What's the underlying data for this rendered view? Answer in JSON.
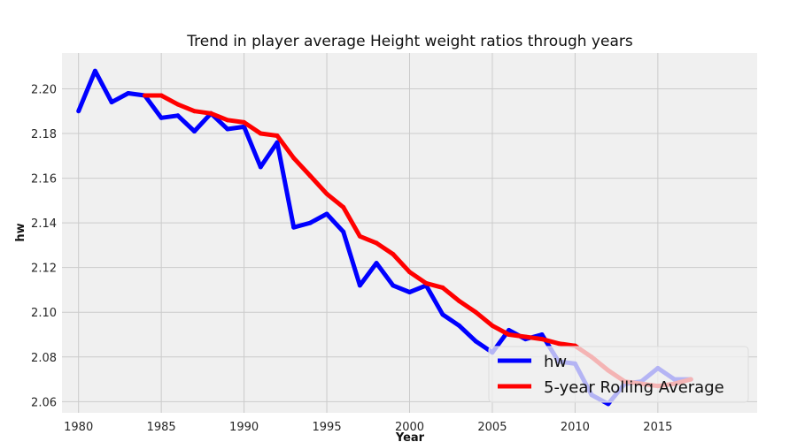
{
  "chart_data": {
    "type": "line",
    "title": "Trend in player average Height weight ratios through years",
    "xlabel": "Year",
    "ylabel": "hw",
    "xlim": [
      1979,
      2021
    ],
    "ylim": [
      2.055,
      2.216
    ],
    "xticks": [
      1980,
      1985,
      1990,
      1995,
      2000,
      2005,
      2010,
      2015
    ],
    "yticks": [
      2.06,
      2.08,
      2.1,
      2.12,
      2.14,
      2.16,
      2.18,
      2.2
    ],
    "ytick_labels": [
      "2.06",
      "2.08",
      "2.10",
      "2.12",
      "2.14",
      "2.16",
      "2.18",
      "2.20"
    ],
    "grid": true,
    "legend_position": "lower-right",
    "background_color": "#f0f0f0",
    "series": [
      {
        "name": "hw",
        "color": "#0000ff",
        "x": [
          1980,
          1981,
          1982,
          1983,
          1984,
          1985,
          1986,
          1987,
          1988,
          1989,
          1990,
          1991,
          1992,
          1993,
          1994,
          1995,
          1996,
          1997,
          1998,
          1999,
          2000,
          2001,
          2002,
          2003,
          2004,
          2005,
          2006,
          2007,
          2008,
          2009,
          2010,
          2011,
          2012,
          2013,
          2014,
          2015,
          2016,
          2017
        ],
        "values": [
          2.19,
          2.208,
          2.194,
          2.198,
          2.197,
          2.187,
          2.188,
          2.181,
          2.189,
          2.182,
          2.183,
          2.165,
          2.176,
          2.138,
          2.14,
          2.144,
          2.136,
          2.112,
          2.122,
          2.112,
          2.109,
          2.112,
          2.099,
          2.094,
          2.087,
          2.082,
          2.092,
          2.088,
          2.09,
          2.078,
          2.077,
          2.063,
          2.059,
          2.068,
          2.069,
          2.075,
          2.07,
          2.07
        ]
      },
      {
        "name": "5-year Rolling Average",
        "color": "#ff0000",
        "x": [
          1984,
          1985,
          1986,
          1987,
          1988,
          1989,
          1990,
          1991,
          1992,
          1993,
          1994,
          1995,
          1996,
          1997,
          1998,
          1999,
          2000,
          2001,
          2002,
          2003,
          2004,
          2005,
          2006,
          2007,
          2008,
          2009,
          2010,
          2011,
          2012,
          2013,
          2014,
          2015,
          2016,
          2017
        ],
        "values": [
          2.197,
          2.197,
          2.193,
          2.19,
          2.189,
          2.186,
          2.185,
          2.18,
          2.179,
          2.169,
          2.161,
          2.153,
          2.147,
          2.134,
          2.131,
          2.126,
          2.118,
          2.113,
          2.111,
          2.105,
          2.1,
          2.094,
          2.09,
          2.089,
          2.088,
          2.086,
          2.085,
          2.08,
          2.074,
          2.069,
          2.068,
          2.067,
          2.068,
          2.07
        ]
      }
    ]
  }
}
